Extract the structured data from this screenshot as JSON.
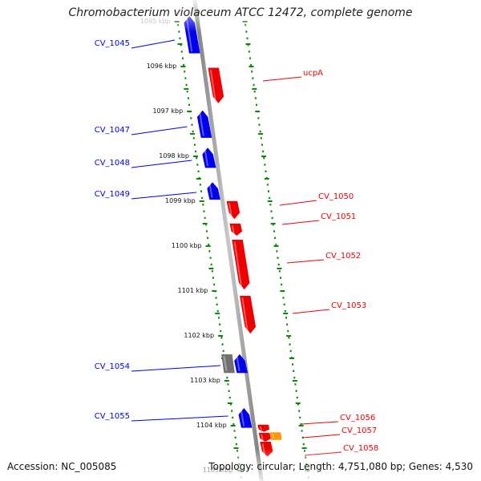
{
  "title": "Chromobacterium violaceum ATCC 12472, complete genome",
  "accession_text": "Accession: NC_005085",
  "topology_text": "Topology: circular; Length: 4,751,080 bp; Genes: 4,530",
  "colors": {
    "minus": "#0000ee",
    "plus": "#ee0000",
    "other_gray": "#707070",
    "other_orange": "#ff9900",
    "tick": "#0a8a0a",
    "backbone": "#909090"
  },
  "kbp_ticks": [
    {
      "label": "1095 kbp",
      "pos": 1095.0
    },
    {
      "label": "1096 kbp",
      "pos": 1096.0
    },
    {
      "label": "1097 kbp",
      "pos": 1097.0
    },
    {
      "label": "1098 kbp",
      "pos": 1098.0
    },
    {
      "label": "1099 kbp",
      "pos": 1099.0
    },
    {
      "label": "1100 kbp",
      "pos": 1100.0
    },
    {
      "label": "1101 kbp",
      "pos": 1101.0
    },
    {
      "label": "1102 kbp",
      "pos": 1102.0
    },
    {
      "label": "1103 kbp",
      "pos": 1103.0
    },
    {
      "label": "1104 kbp",
      "pos": 1104.0
    },
    {
      "label": "1105 kbp",
      "pos": 1105.0
    }
  ],
  "genes": [
    {
      "name": "CV_1045",
      "strand": "-",
      "start": 1094.9,
      "end": 1095.72
    },
    {
      "name": "ucpA",
      "strand": "+",
      "start": 1096.05,
      "end": 1096.83
    },
    {
      "name": "CV_1047",
      "strand": "-",
      "start": 1097.0,
      "end": 1097.6
    },
    {
      "name": "CV_1048",
      "strand": "-",
      "start": 1097.83,
      "end": 1098.27
    },
    {
      "name": "CV_1049",
      "strand": "-",
      "start": 1098.6,
      "end": 1098.98
    },
    {
      "name": "CV_1050",
      "strand": "+",
      "start": 1099.02,
      "end": 1099.41
    },
    {
      "name": "CV_1051",
      "strand": "+",
      "start": 1099.52,
      "end": 1099.78
    },
    {
      "name": "CV_1052",
      "strand": "+",
      "start": 1099.88,
      "end": 1100.98
    },
    {
      "name": "CV_1053",
      "strand": "+",
      "start": 1101.13,
      "end": 1101.96
    },
    {
      "name": "",
      "strand": "other",
      "start": 1102.43,
      "end": 1102.84
    },
    {
      "name": "CV_1054",
      "strand": "-",
      "start": 1102.43,
      "end": 1102.84
    },
    {
      "name": "CV_1055",
      "strand": "-",
      "start": 1103.63,
      "end": 1104.06
    },
    {
      "name": "CV_1056",
      "strand": "+",
      "start": 1104.0,
      "end": 1104.15
    },
    {
      "name": "CV_1057",
      "strand": "+",
      "start": 1104.18,
      "end": 1104.37
    },
    {
      "name": "",
      "strand": "other2",
      "start": 1104.17,
      "end": 1104.33
    },
    {
      "name": "CV_1058",
      "strand": "+",
      "start": 1104.38,
      "end": 1104.7
    }
  ]
}
